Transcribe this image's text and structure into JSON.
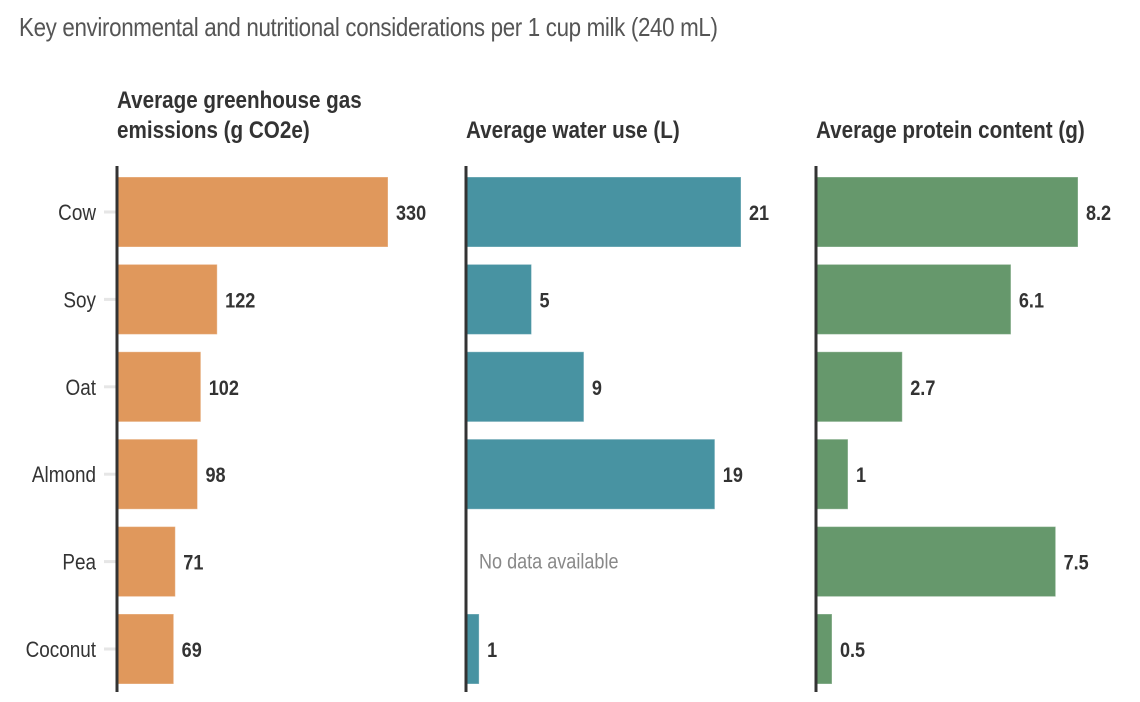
{
  "chart_data": {
    "type": "bar",
    "orientation": "horizontal",
    "title": "Key environmental and nutritional considerations per 1 cup milk (240 mL)",
    "categories": [
      "Cow",
      "Soy",
      "Oat",
      "Almond",
      "Pea",
      "Coconut"
    ],
    "panels": [
      {
        "title_lines": [
          "Average greenhouse gas",
          "emissions (g CO2e)"
        ],
        "color": "#E0985C",
        "values": [
          330,
          122,
          102,
          98,
          71,
          69
        ],
        "labels": [
          "330",
          "122",
          "102",
          "98",
          "71",
          "69"
        ],
        "xlim": [
          0,
          330
        ]
      },
      {
        "title_lines": [
          "Average water use (L)"
        ],
        "color": "#4893A2",
        "values": [
          21,
          5,
          9,
          19,
          null,
          1
        ],
        "labels": [
          "21",
          "5",
          "9",
          "19",
          "",
          "1"
        ],
        "xlim": [
          0,
          21
        ],
        "missing_label": "No data available"
      },
      {
        "title_lines": [
          "Average protein content (g)"
        ],
        "color": "#66986C",
        "values": [
          8.2,
          6.1,
          2.7,
          1,
          7.5,
          0.5
        ],
        "labels": [
          "8.2",
          "6.1",
          "2.7",
          "1",
          "7.5",
          "0.5"
        ],
        "xlim": [
          0,
          8.2
        ]
      }
    ],
    "grid": false,
    "legend": "none"
  }
}
